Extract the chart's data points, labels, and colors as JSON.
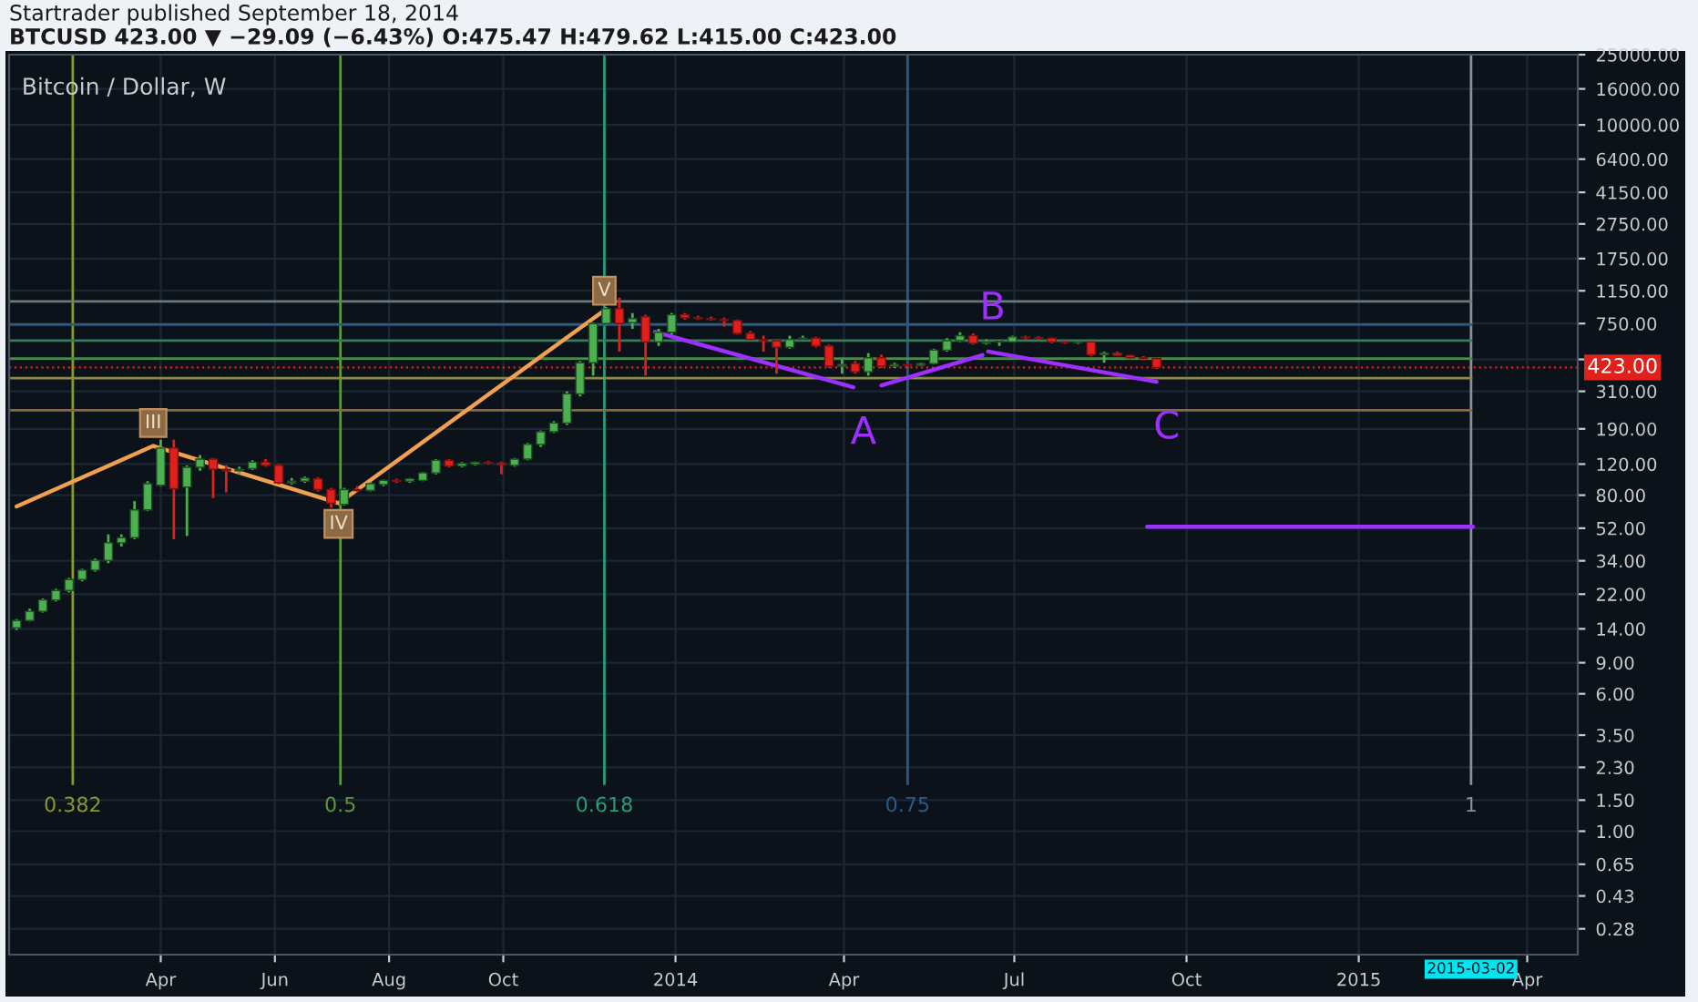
{
  "chart_data": {
    "type": "candlestick",
    "title": "Startrader published September 18, 2014",
    "subtitle": "BTCUSD 423.00 ▼ −29.09 (−6.43%) O:475.47 H:479.62 L:415.00 C:423.00",
    "x": [
      "2013-01-14",
      "2013-01-21",
      "2013-01-28",
      "2013-02-04",
      "2013-02-11",
      "2013-02-18",
      "2013-02-25",
      "2013-03-04",
      "2013-03-11",
      "2013-03-18",
      "2013-03-25",
      "2013-04-01",
      "2013-04-08",
      "2013-04-15",
      "2013-04-22",
      "2013-04-29",
      "2013-05-06",
      "2013-05-13",
      "2013-05-20",
      "2013-05-27",
      "2013-06-03",
      "2013-06-10",
      "2013-06-17",
      "2013-06-24",
      "2013-07-01",
      "2013-07-08",
      "2013-07-15",
      "2013-07-22",
      "2013-07-29",
      "2013-08-05",
      "2013-08-12",
      "2013-08-19",
      "2013-08-26",
      "2013-09-02",
      "2013-09-09",
      "2013-09-16",
      "2013-09-23",
      "2013-09-30",
      "2013-10-07",
      "2013-10-14",
      "2013-10-21",
      "2013-10-28",
      "2013-11-04",
      "2013-11-11",
      "2013-11-18",
      "2013-11-25",
      "2013-12-02",
      "2013-12-09",
      "2013-12-16",
      "2013-12-23",
      "2013-12-30",
      "2014-01-06",
      "2014-01-13",
      "2014-01-20",
      "2014-01-27",
      "2014-02-03",
      "2014-02-10",
      "2014-02-17",
      "2014-02-24",
      "2014-03-03",
      "2014-03-10",
      "2014-03-17",
      "2014-03-24",
      "2014-03-31",
      "2014-04-07",
      "2014-04-14",
      "2014-04-21",
      "2014-04-28",
      "2014-05-05",
      "2014-05-12",
      "2014-05-19",
      "2014-05-26",
      "2014-06-02",
      "2014-06-09",
      "2014-06-16",
      "2014-06-23",
      "2014-06-30",
      "2014-07-07",
      "2014-07-14",
      "2014-07-21",
      "2014-07-28",
      "2014-08-04",
      "2014-08-11",
      "2014-08-18",
      "2014-08-25",
      "2014-09-01",
      "2014-09-08",
      "2014-09-15"
    ],
    "ohlc": [
      [
        14.2,
        15.9,
        13.8,
        15.6
      ],
      [
        15.6,
        18.2,
        15.4,
        17.6
      ],
      [
        17.6,
        20.8,
        17.3,
        20.4
      ],
      [
        20.4,
        23.6,
        20.0,
        23.1
      ],
      [
        23.1,
        27.2,
        22.5,
        26.6
      ],
      [
        26.6,
        30.6,
        26.0,
        30.1
      ],
      [
        30.1,
        35.0,
        29.5,
        34.2
      ],
      [
        34.2,
        48,
        33,
        43
      ],
      [
        43,
        48,
        41,
        46
      ],
      [
        46,
        74,
        45,
        66
      ],
      [
        66,
        96,
        65,
        93
      ],
      [
        91,
        165,
        90,
        148
      ],
      [
        148,
        165,
        45,
        87
      ],
      [
        89,
        118,
        47,
        115
      ],
      [
        115,
        135,
        110,
        128
      ],
      [
        128,
        130,
        77,
        112
      ],
      [
        112,
        118,
        83,
        110
      ],
      [
        110,
        116,
        105,
        112
      ],
      [
        113,
        126,
        111,
        123
      ],
      [
        123,
        128,
        116,
        118
      ],
      [
        118,
        120,
        92,
        94
      ],
      [
        94,
        100,
        92,
        96
      ],
      [
        96,
        102,
        94,
        100
      ],
      [
        99,
        101,
        84,
        86
      ],
      [
        86,
        88,
        68,
        72
      ],
      [
        71,
        88,
        70,
        86
      ],
      [
        86,
        90,
        83,
        85
      ],
      [
        85,
        95,
        84,
        93
      ],
      [
        92,
        98,
        90,
        97
      ],
      [
        97,
        99,
        94,
        96
      ],
      [
        96,
        100,
        94,
        99
      ],
      [
        97,
        108,
        96,
        107
      ],
      [
        107,
        128,
        105,
        126
      ],
      [
        126,
        128,
        115,
        117
      ],
      [
        117,
        123,
        115,
        121
      ],
      [
        120,
        124,
        118,
        123
      ],
      [
        123,
        125,
        120,
        122
      ],
      [
        122,
        124,
        105,
        119
      ],
      [
        118,
        130,
        116,
        128
      ],
      [
        128,
        158,
        126,
        155
      ],
      [
        155,
        186,
        150,
        183
      ],
      [
        183,
        210,
        180,
        205
      ],
      [
        205,
        310,
        200,
        300
      ],
      [
        300,
        460,
        290,
        450
      ],
      [
        450,
        760,
        380,
        750
      ],
      [
        750,
        930,
        740,
        910
      ],
      [
        910,
        1050,
        520,
        750
      ],
      [
        760,
        860,
        700,
        800
      ],
      [
        820,
        840,
        380,
        590
      ],
      [
        590,
        700,
        560,
        670
      ],
      [
        670,
        860,
        650,
        840
      ],
      [
        840,
        860,
        790,
        810
      ],
      [
        810,
        830,
        790,
        800
      ],
      [
        800,
        820,
        780,
        790
      ],
      [
        790,
        810,
        720,
        780
      ],
      [
        780,
        790,
        650,
        660
      ],
      [
        660,
        680,
        600,
        610
      ],
      [
        610,
        640,
        520,
        600
      ],
      [
        600,
        610,
        390,
        550
      ],
      [
        550,
        640,
        540,
        610
      ],
      [
        610,
        640,
        600,
        620
      ],
      [
        620,
        630,
        550,
        560
      ],
      [
        560,
        570,
        420,
        430
      ],
      [
        430,
        470,
        390,
        440
      ],
      [
        445,
        460,
        390,
        400
      ],
      [
        400,
        510,
        380,
        480
      ],
      [
        480,
        500,
        420,
        430
      ],
      [
        430,
        450,
        420,
        440
      ],
      [
        440,
        445,
        425,
        435
      ],
      [
        435,
        450,
        430,
        445
      ],
      [
        445,
        540,
        440,
        530
      ],
      [
        530,
        620,
        520,
        600
      ],
      [
        600,
        670,
        590,
        640
      ],
      [
        640,
        660,
        570,
        580
      ],
      [
        580,
        610,
        570,
        590
      ],
      [
        590,
        605,
        560,
        595
      ],
      [
        590,
        640,
        585,
        630
      ],
      [
        630,
        640,
        610,
        625
      ],
      [
        625,
        635,
        610,
        620
      ],
      [
        620,
        625,
        580,
        590
      ],
      [
        590,
        600,
        575,
        585
      ],
      [
        585,
        600,
        575,
        590
      ],
      [
        590,
        595,
        490,
        500
      ],
      [
        500,
        520,
        450,
        510
      ],
      [
        510,
        520,
        490,
        495
      ],
      [
        495,
        500,
        470,
        480
      ],
      [
        480,
        490,
        465,
        475.47
      ],
      [
        475.47,
        479.62,
        415,
        423
      ]
    ],
    "colors": [
      "#4caf50",
      "#4caf50",
      "#4caf50",
      "#4caf50",
      "#4caf50",
      "#4caf50",
      "#4caf50",
      "#4caf50",
      "#4caf50",
      "#4caf50",
      "#4caf50",
      "#4caf50",
      "#e0201a",
      "#4caf50",
      "#4caf50",
      "#e0201a",
      "#e0201a",
      "#4caf50",
      "#4caf50",
      "#e0201a",
      "#e0201a",
      "#4caf50",
      "#4caf50",
      "#e0201a",
      "#e0201a",
      "#4caf50",
      "#e0201a",
      "#4caf50",
      "#4caf50",
      "#e0201a",
      "#4caf50",
      "#4caf50",
      "#4caf50",
      "#e0201a",
      "#4caf50",
      "#4caf50",
      "#e0201a",
      "#e0201a",
      "#4caf50",
      "#4caf50",
      "#4caf50",
      "#4caf50",
      "#4caf50",
      "#4caf50",
      "#4caf50",
      "#4caf50",
      "#e0201a",
      "#4caf50",
      "#e0201a",
      "#4caf50",
      "#4caf50",
      "#e0201a",
      "#e0201a",
      "#e0201a",
      "#e0201a",
      "#e0201a",
      "#e0201a",
      "#e0201a",
      "#e0201a",
      "#4caf50",
      "#4caf50",
      "#e0201a",
      "#e0201a",
      "#4caf50",
      "#e0201a",
      "#4caf50",
      "#e0201a",
      "#4caf50",
      "#e0201a",
      "#4caf50",
      "#4caf50",
      "#4caf50",
      "#4caf50",
      "#e0201a",
      "#4caf50",
      "#4caf50",
      "#4caf50",
      "#e0201a",
      "#e0201a",
      "#e0201a",
      "#e0201a",
      "#4caf50",
      "#e0201a",
      "#4caf50",
      "#e0201a",
      "#e0201a",
      "#e0201a",
      "#e0201a"
    ],
    "series": [
      {
        "type": "line",
        "color": "#f0a050",
        "x": [
          "2013-01-14",
          "2013-03-28",
          "2013-07-05",
          "2013-11-24"
        ],
        "values": [
          69,
          152,
          72,
          890
        ]
      },
      {
        "type": "line",
        "color": "#9b30ff",
        "x": [
          "2013-12-21",
          "2014-04-06"
        ],
        "values": [
          673,
          327
        ]
      },
      {
        "type": "line",
        "color": "#9b30ff",
        "x": [
          "2014-04-21",
          "2014-06-14"
        ],
        "values": [
          335,
          497
        ]
      },
      {
        "type": "line",
        "color": "#9b30ff",
        "x": [
          "2014-06-17",
          "2014-09-15"
        ],
        "values": [
          521,
          351
        ]
      },
      {
        "type": "line",
        "color": "#9b30ff",
        "x": [
          "2014-09-10",
          "2015-03-03"
        ],
        "values": [
          53,
          53
        ]
      }
    ],
    "annotations": [
      "Bitcoin / Dollar, W",
      {
        "text": "III",
        "x": "2013-03-28",
        "y": 205
      },
      {
        "text": "IV",
        "x": "2013-07-05",
        "y": 55
      },
      {
        "text": "V",
        "x": "2013-11-24",
        "y": 1150
      },
      {
        "text": "A",
        "x": "2014-04-06",
        "y": 327
      },
      {
        "text": "B",
        "x": "2014-06-14",
        "y": 497
      },
      {
        "text": "C",
        "x": "2014-09-15",
        "y": 351
      },
      "2015-03-02"
    ],
    "ref_lines": [
      {
        "axis": "x",
        "value": "2013-02-13",
        "label": "0.382",
        "color": "#8a9a2a",
        "line_style": "solid"
      },
      {
        "axis": "x",
        "value": "2013-07-06",
        "label": "0.5",
        "color": "#5a9a3a",
        "line_style": "solid"
      },
      {
        "axis": "x",
        "value": "2013-11-24",
        "label": "0.618",
        "color": "#2a9a7a",
        "line_style": "solid"
      },
      {
        "axis": "x",
        "value": "2014-05-05",
        "label": "0.75",
        "color": "#2a5a8a",
        "line_style": "solid"
      },
      {
        "axis": "x",
        "value": "2015-03-02",
        "label": "1",
        "color": "#8a8f9a",
        "line_style": "solid"
      },
      {
        "axis": "y",
        "value": 1000,
        "color": "#6a7a7a",
        "line_style": "solid"
      },
      {
        "axis": "y",
        "value": 740,
        "color": "#2a5a8a",
        "line_style": "solid"
      },
      {
        "axis": "y",
        "value": 600,
        "color": "#3a7a5a",
        "line_style": "solid"
      },
      {
        "axis": "y",
        "value": 475,
        "color": "#4a8a4a",
        "line_style": "solid"
      },
      {
        "axis": "y",
        "value": 368,
        "color": "#8a8a4a",
        "line_style": "solid"
      },
      {
        "axis": "y",
        "value": 242,
        "color": "#8a6a3a",
        "line_style": "solid"
      },
      {
        "axis": "y",
        "value": 423,
        "label": "423.00",
        "color": "#e0201a",
        "line_style": "dotted"
      }
    ],
    "log": "y",
    "grid": true,
    "xlim": [
      "2013-01-10",
      "2015-04-28"
    ],
    "xticks": [
      {
        "value": "2013-04-01",
        "label": "Apr"
      },
      {
        "value": "2013-06-01",
        "label": "Jun"
      },
      {
        "value": "2013-08-01",
        "label": "Aug"
      },
      {
        "value": "2013-10-01",
        "label": "Oct"
      },
      {
        "value": "2014-01-01",
        "label": "2014"
      },
      {
        "value": "2014-04-01",
        "label": "Apr"
      },
      {
        "value": "2014-07-01",
        "label": "Jul"
      },
      {
        "value": "2014-10-01",
        "label": "Oct"
      },
      {
        "value": "2015-01-01",
        "label": "2015"
      },
      {
        "value": "2015-04-01",
        "label": "Apr"
      }
    ],
    "ylim": [
      0.2,
      25000
    ],
    "yticks": [
      {
        "value": 25000,
        "label": "25000.00"
      },
      {
        "value": 16000,
        "label": "16000.00"
      },
      {
        "value": 10000,
        "label": "10000.00"
      },
      {
        "value": 6400,
        "label": "6400.00"
      },
      {
        "value": 4150,
        "label": "4150.00"
      },
      {
        "value": 2750,
        "label": "2750.00"
      },
      {
        "value": 1750,
        "label": "1750.00"
      },
      {
        "value": 1150,
        "label": "1150.00"
      },
      {
        "value": 750,
        "label": "750.00"
      },
      {
        "value": 470,
        "label": null
      },
      {
        "value": 310,
        "label": "310.00"
      },
      {
        "value": 190,
        "label": "190.00"
      },
      {
        "value": 120,
        "label": "120.00"
      },
      {
        "value": 80,
        "label": "80.00"
      },
      {
        "value": 52,
        "label": "52.00"
      },
      {
        "value": 34,
        "label": "34.00"
      },
      {
        "value": 22,
        "label": "22.00"
      },
      {
        "value": 14,
        "label": "14.00"
      },
      {
        "value": 9,
        "label": "9.00"
      },
      {
        "value": 6,
        "label": "6.00"
      },
      {
        "value": 3.5,
        "label": "3.50"
      },
      {
        "value": 2.3,
        "label": "2.30"
      },
      {
        "value": 1.5,
        "label": "1.50"
      },
      {
        "value": 1,
        "label": "1.00"
      },
      {
        "value": 0.65,
        "label": "0.65"
      },
      {
        "value": 0.43,
        "label": "0.43"
      },
      {
        "value": 0.28,
        "label": "0.28"
      }
    ]
  }
}
